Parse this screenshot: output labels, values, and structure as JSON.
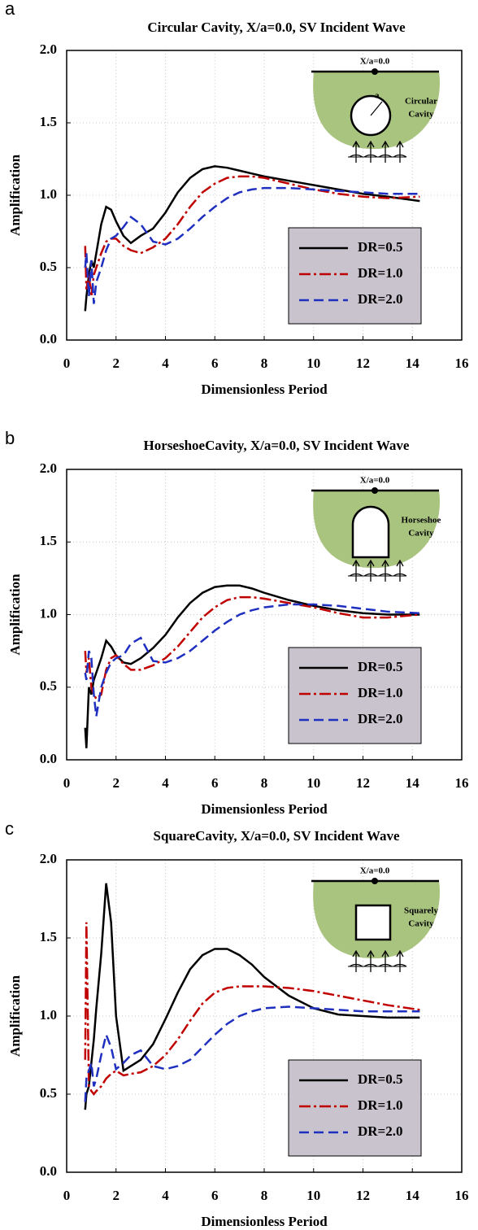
{
  "chart_data": [
    {
      "type": "line",
      "panel": "a",
      "title": "Circular Cavity, X/a=0.0, SV Incident Wave",
      "xlabel": "Dimensionless Period",
      "ylabel": "Amplification",
      "xlim": [
        0,
        16
      ],
      "xticks": [
        0,
        2,
        4,
        6,
        8,
        10,
        12,
        14,
        16
      ],
      "ylim": [
        0,
        2
      ],
      "yticks": [
        {
          "value": 0,
          "label": "0.0"
        },
        {
          "value": 0.5,
          "label": "0.5"
        },
        {
          "value": 1,
          "label": "1.0"
        },
        {
          "value": 1.5,
          "label": "1.5"
        },
        {
          "value": 2,
          "label": "2.0"
        }
      ],
      "grid": true,
      "inset": {
        "surface_label": "X/a=0.0",
        "radius_label": "a",
        "cavity_label": [
          "Circular",
          "Cavity"
        ]
      },
      "x": [
        0.75,
        0.8,
        0.9,
        1.0,
        1.1,
        1.2,
        1.4,
        1.6,
        1.8,
        2.0,
        2.3,
        2.6,
        3.0,
        3.5,
        4,
        4.5,
        5,
        5.5,
        6,
        6.5,
        7,
        7.5,
        8,
        9,
        10,
        11,
        12,
        13,
        14.3
      ],
      "series": [
        {
          "name": "DR=0.5",
          "color": "#000000",
          "linestyle": "solid",
          "values": [
            0.2,
            0.3,
            0.45,
            0.55,
            0.5,
            0.6,
            0.8,
            0.92,
            0.9,
            0.82,
            0.72,
            0.67,
            0.72,
            0.77,
            0.88,
            1.02,
            1.12,
            1.18,
            1.2,
            1.19,
            1.17,
            1.15,
            1.13,
            1.1,
            1.07,
            1.04,
            1.01,
            0.99,
            0.96
          ]
        },
        {
          "name": "DR=1.0",
          "color": "#c00000",
          "linestyle": "dashdot",
          "values": [
            0.65,
            0.35,
            0.45,
            0.3,
            0.45,
            0.5,
            0.6,
            0.68,
            0.7,
            0.7,
            0.65,
            0.62,
            0.6,
            0.64,
            0.7,
            0.8,
            0.92,
            1.02,
            1.08,
            1.12,
            1.13,
            1.13,
            1.12,
            1.08,
            1.04,
            1.01,
            0.99,
            0.98,
            0.99
          ]
        },
        {
          "name": "DR=2.0",
          "color": "#1f2fc0",
          "linestyle": "dashed",
          "values": [
            0.5,
            0.6,
            0.3,
            0.55,
            0.25,
            0.4,
            0.5,
            0.62,
            0.7,
            0.72,
            0.78,
            0.85,
            0.8,
            0.68,
            0.66,
            0.7,
            0.77,
            0.85,
            0.92,
            0.98,
            1.02,
            1.04,
            1.05,
            1.05,
            1.04,
            1.03,
            1.02,
            1.01,
            1.01
          ]
        }
      ]
    },
    {
      "type": "line",
      "panel": "b",
      "title": "HorseshoeCavity, X/a=0.0, SV Incident Wave",
      "xlabel": "Dimensionless Period",
      "ylabel": "Amplification",
      "xlim": [
        0,
        16
      ],
      "xticks": [
        0,
        2,
        4,
        6,
        8,
        10,
        12,
        14,
        16
      ],
      "ylim": [
        0,
        2
      ],
      "yticks": [
        {
          "value": 0,
          "label": "0.0"
        },
        {
          "value": 0.5,
          "label": "0.5"
        },
        {
          "value": 1,
          "label": "1.0"
        },
        {
          "value": 1.5,
          "label": "1.5"
        },
        {
          "value": 2,
          "label": "2.0"
        }
      ],
      "grid": true,
      "inset": {
        "surface_label": "X/a=0.0",
        "cavity_label": [
          "Horseshoe",
          "Cavity"
        ]
      },
      "x": [
        0.75,
        0.8,
        0.9,
        1.0,
        1.1,
        1.2,
        1.4,
        1.6,
        1.8,
        2.0,
        2.3,
        2.6,
        3.0,
        3.5,
        4,
        4.5,
        5,
        5.5,
        6,
        6.5,
        7,
        7.5,
        8,
        9,
        10,
        11,
        12,
        13,
        14.3
      ],
      "series": [
        {
          "name": "DR=0.5",
          "color": "#000000",
          "linestyle": "solid",
          "values": [
            0.22,
            0.08,
            0.5,
            0.45,
            0.55,
            0.6,
            0.7,
            0.82,
            0.78,
            0.72,
            0.67,
            0.66,
            0.7,
            0.77,
            0.86,
            0.98,
            1.08,
            1.15,
            1.19,
            1.2,
            1.2,
            1.18,
            1.15,
            1.1,
            1.06,
            1.03,
            1.01,
            1.0,
            1.0
          ]
        },
        {
          "name": "DR=1.0",
          "color": "#c00000",
          "linestyle": "dashdot",
          "values": [
            0.75,
            0.6,
            0.7,
            0.5,
            0.45,
            0.42,
            0.45,
            0.62,
            0.7,
            0.72,
            0.66,
            0.62,
            0.62,
            0.65,
            0.7,
            0.78,
            0.88,
            0.98,
            1.05,
            1.1,
            1.12,
            1.12,
            1.11,
            1.08,
            1.05,
            1.01,
            0.98,
            0.98,
            1.0
          ]
        },
        {
          "name": "DR=2.0",
          "color": "#1f2fc0",
          "linestyle": "dashed",
          "values": [
            0.6,
            0.55,
            0.75,
            0.7,
            0.45,
            0.3,
            0.5,
            0.6,
            0.67,
            0.7,
            0.72,
            0.8,
            0.84,
            0.68,
            0.67,
            0.7,
            0.75,
            0.82,
            0.89,
            0.95,
            1.0,
            1.03,
            1.05,
            1.07,
            1.07,
            1.06,
            1.04,
            1.02,
            1.01
          ]
        }
      ]
    },
    {
      "type": "line",
      "panel": "c",
      "title": "SquareCavity, X/a=0.0, SV Incident Wave",
      "xlabel": "Dimensionless Period",
      "ylabel": "Amplification",
      "xlim": [
        0,
        16
      ],
      "xticks": [
        0,
        2,
        4,
        6,
        8,
        10,
        12,
        14,
        16
      ],
      "ylim": [
        0,
        2
      ],
      "yticks": [
        {
          "value": 0,
          "label": "0.0"
        },
        {
          "value": 0.5,
          "label": "0.5"
        },
        {
          "value": 1,
          "label": "1.0"
        },
        {
          "value": 1.5,
          "label": "1.5"
        },
        {
          "value": 2,
          "label": "2.0"
        }
      ],
      "grid": true,
      "inset": {
        "surface_label": "X/a=0.0",
        "cavity_label": [
          "Squarely",
          "Cavity"
        ]
      },
      "x": [
        0.75,
        0.8,
        0.9,
        1.0,
        1.1,
        1.2,
        1.4,
        1.6,
        1.8,
        2.0,
        2.3,
        2.6,
        3.0,
        3.5,
        4,
        4.5,
        5,
        5.5,
        6,
        6.5,
        7,
        7.5,
        8,
        9,
        10,
        11,
        12,
        13,
        14.3
      ],
      "series": [
        {
          "name": "DR=0.5",
          "color": "#000000",
          "linestyle": "solid",
          "values": [
            0.4,
            0.5,
            0.55,
            0.7,
            0.85,
            1.05,
            1.4,
            1.85,
            1.6,
            1.0,
            0.65,
            0.68,
            0.72,
            0.82,
            0.98,
            1.15,
            1.3,
            1.39,
            1.43,
            1.43,
            1.39,
            1.33,
            1.25,
            1.13,
            1.05,
            1.01,
            1.0,
            0.99,
            0.99
          ]
        },
        {
          "name": "DR=1.0",
          "color": "#c00000",
          "linestyle": "dashdot",
          "values": [
            0.72,
            1.6,
            0.55,
            0.52,
            0.5,
            0.52,
            0.55,
            0.6,
            0.63,
            0.65,
            0.62,
            0.63,
            0.64,
            0.68,
            0.75,
            0.85,
            0.97,
            1.08,
            1.15,
            1.18,
            1.19,
            1.19,
            1.19,
            1.18,
            1.16,
            1.13,
            1.1,
            1.07,
            1.04
          ]
        },
        {
          "name": "DR=2.0",
          "color": "#1f2fc0",
          "linestyle": "dashed",
          "values": [
            0.45,
            0.6,
            0.65,
            0.7,
            0.55,
            0.6,
            0.75,
            0.88,
            0.8,
            0.66,
            0.7,
            0.75,
            0.78,
            0.68,
            0.66,
            0.68,
            0.72,
            0.8,
            0.88,
            0.95,
            1.0,
            1.03,
            1.05,
            1.06,
            1.05,
            1.04,
            1.03,
            1.03,
            1.03
          ]
        }
      ]
    }
  ]
}
